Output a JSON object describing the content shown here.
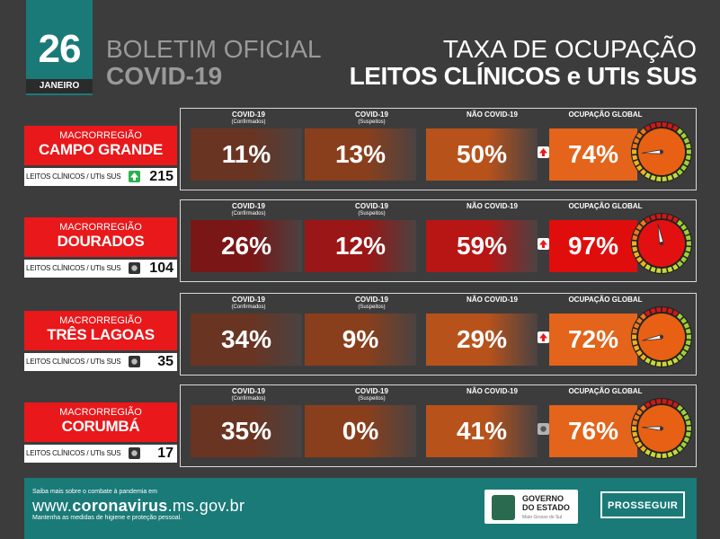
{
  "header": {
    "day": "26",
    "month": "JANEIRO",
    "left_line1": "BOLETIM OFICIAL",
    "left_line2": "COVID-19",
    "right_line1": "TAXA DE OCUPAÇÃO",
    "right_line2": "LEITOS CLÍNICOS e UTIs SUS"
  },
  "columns": [
    {
      "title": "COVID-19",
      "sub": "(Confirmados)"
    },
    {
      "title": "COVID-19",
      "sub": "(Suspeitos)"
    },
    {
      "title": "NÃO COVID-19",
      "sub": ""
    },
    {
      "title": "OCUPAÇÃO GLOBAL",
      "sub": ""
    }
  ],
  "regions": [
    {
      "prefix": "MACRORREGIÃO",
      "name": "CAMPO GRANDE",
      "beds_label": "LEITOS CLÍNICOS / UTIs SUS",
      "beds_trend": "up",
      "beds": "215",
      "confirmed": "11%",
      "suspected": "13%",
      "non_covid": "50%",
      "global": "74%",
      "global_trend": "up",
      "global_value": 74
    },
    {
      "prefix": "MACRORREGIÃO",
      "name": "DOURADOS",
      "beds_label": "LEITOS CLÍNICOS / UTIs SUS",
      "beds_trend": "equal",
      "beds": "104",
      "confirmed": "26%",
      "suspected": "12%",
      "non_covid": "59%",
      "global": "97%",
      "global_trend": "up",
      "global_value": 97
    },
    {
      "prefix": "MACRORREGIÃO",
      "name": "TRÊS LAGOAS",
      "beds_label": "LEITOS CLÍNICOS / UTIs SUS",
      "beds_trend": "equal",
      "beds": "35",
      "confirmed": "34%",
      "suspected": "9%",
      "non_covid": "29%",
      "global": "72%",
      "global_trend": "up",
      "global_value": 72
    },
    {
      "prefix": "MACRORREGIÃO",
      "name": "CORUMBÁ",
      "beds_label": "LEITOS CLÍNICOS / UTIs SUS",
      "beds_trend": "equal",
      "beds": "17",
      "confirmed": "35%",
      "suspected": "0%",
      "non_covid": "41%",
      "global": "76%",
      "global_trend": "equal",
      "global_value": 76
    }
  ],
  "footer": {
    "line1": "Saiba mais sobre o combate à pandemia em",
    "url_prefix": "www.",
    "url_bold": "coronavirus",
    "url_suffix": ".ms.gov.br",
    "line2": "Mantenha as medidas de higiene e proteção pessoal.",
    "gov_line1": "GOVERNO",
    "gov_line2": "DO ESTADO",
    "gov_line3": "Mato Grosso do Sul",
    "prosseguir": "PROSSEGUIR"
  },
  "colors": {
    "brand_teal": "#1a7a78",
    "alert_red": "#e8181b",
    "orange": "#e0661a",
    "dark_red": "#b31814"
  }
}
